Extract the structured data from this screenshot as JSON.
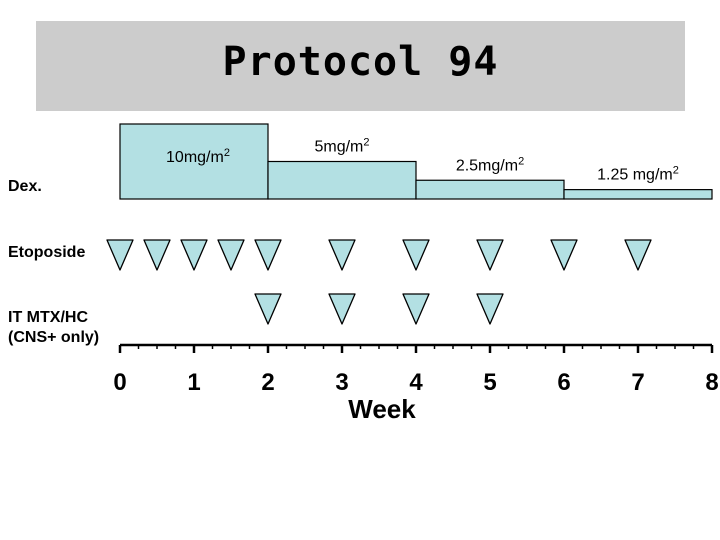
{
  "title": "Protocol 94",
  "colors": {
    "fill": "#b3e0e3",
    "stroke": "#000000",
    "title_bg": "#cccccc"
  },
  "rows": {
    "dex": "Dex.",
    "etoposide": "Etoposide",
    "itmtx_line1": "IT MTX/HC",
    "itmtx_line2": "(CNS+ only)"
  },
  "chart_data": {
    "type": "timeline",
    "x_axis": {
      "label": "Week",
      "min": 0,
      "max": 8,
      "ticks": [
        "0",
        "1",
        "2",
        "3",
        "4",
        "5",
        "6",
        "7",
        "8"
      ]
    },
    "dex_doses": [
      {
        "label": "10mg/m",
        "sup": "2",
        "start": 0,
        "end": 2,
        "level": 4
      },
      {
        "label": "5mg/m",
        "sup": "2",
        "start": 2,
        "end": 4,
        "level": 2
      },
      {
        "label": "2.5mg/m",
        "sup": "2",
        "start": 4,
        "end": 6,
        "level": 1
      },
      {
        "label": "1.25 mg/m",
        "sup": "2",
        "start": 6,
        "end": 8,
        "level": 0.5
      }
    ],
    "etoposide_weeks": [
      0,
      0.5,
      1,
      1.5,
      2,
      3,
      4,
      5,
      6,
      7
    ],
    "itmtx_weeks": [
      2,
      3,
      4,
      5
    ]
  }
}
